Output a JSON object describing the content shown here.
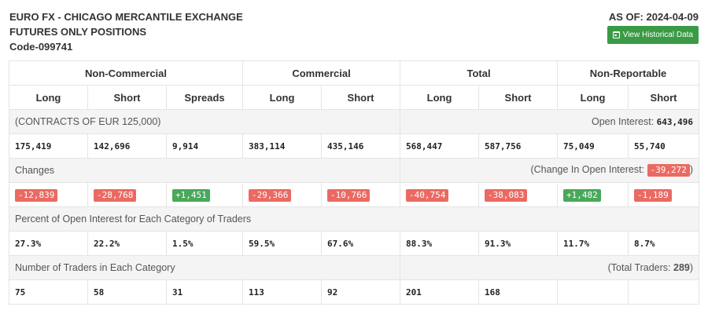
{
  "header": {
    "title_line1": "EURO FX - CHICAGO MERCANTILE EXCHANGE",
    "title_line2": "FUTURES ONLY POSITIONS",
    "code": "Code-099741",
    "as_of": "AS OF: 2024-04-09",
    "button_label": "View Historical Data"
  },
  "groups": [
    "Non-Commercial",
    "Commercial",
    "Total",
    "Non-Reportable"
  ],
  "subheaders": [
    "Long",
    "Short",
    "Spreads",
    "Long",
    "Short",
    "Long",
    "Short",
    "Long",
    "Short"
  ],
  "contracts": {
    "label": "(CONTRACTS OF EUR 125,000)",
    "oi_label": "Open Interest: ",
    "oi_value": "643,496",
    "values": [
      "175,419",
      "142,696",
      "9,914",
      "383,114",
      "435,146",
      "568,447",
      "587,756",
      "75,049",
      "55,740"
    ]
  },
  "changes": {
    "label": "Changes",
    "oi_label": "(Change In Open Interest: ",
    "oi_value": "-39,272",
    "oi_close": ")",
    "values": [
      "-12,839",
      "-28,768",
      "+1,451",
      "-29,366",
      "-10,766",
      "-40,754",
      "-38,083",
      "+1,482",
      "-1,189"
    ]
  },
  "percent": {
    "label": "Percent of Open Interest for Each Category of Traders",
    "values": [
      "27.3%",
      "22.2%",
      "1.5%",
      "59.5%",
      "67.6%",
      "88.3%",
      "91.3%",
      "11.7%",
      "8.7%"
    ]
  },
  "traders": {
    "label": "Number of Traders in Each Category",
    "total_label": "(Total Traders: ",
    "total_value": "289",
    "total_close": ")",
    "values": [
      "75",
      "58",
      "31",
      "113",
      "92",
      "201",
      "168",
      "",
      ""
    ]
  },
  "colors": {
    "positive": "#4aa85a",
    "negative": "#ea6a62",
    "button": "#3a9a46"
  }
}
